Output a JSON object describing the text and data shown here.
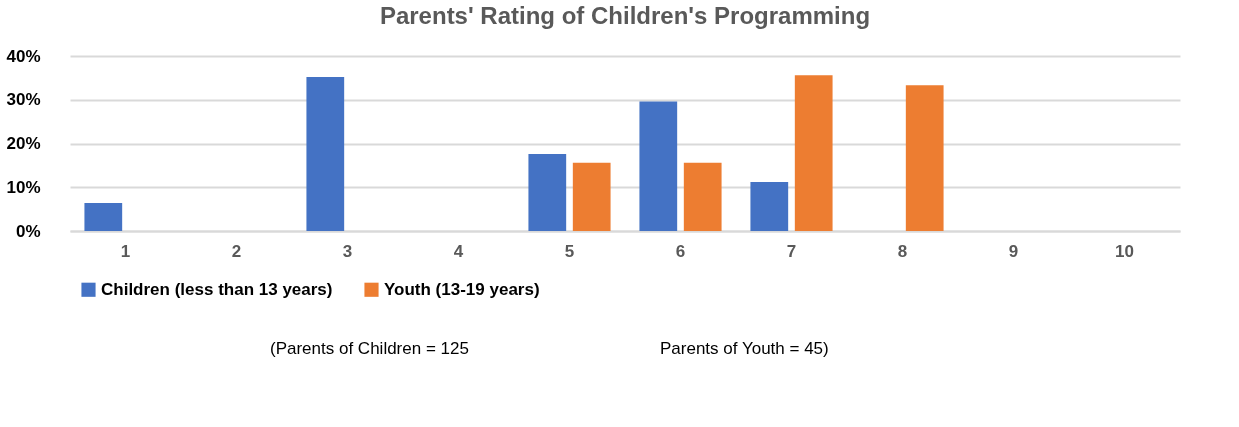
{
  "chart_data": {
    "type": "bar",
    "title": "Parents' Rating of Children's Programming",
    "categories": [
      "1",
      "2",
      "3",
      "4",
      "5",
      "6",
      "7",
      "8",
      "9",
      "10"
    ],
    "series": [
      {
        "name": "Children (less than 13 years)",
        "color": "#4472c4",
        "values": [
          6.4,
          0,
          35.2,
          0,
          17.6,
          29.6,
          11.2,
          0,
          0,
          0
        ]
      },
      {
        "name": "Youth (13-19 years)",
        "color": "#ed7d31",
        "values": [
          0,
          0,
          0,
          0,
          15.6,
          15.6,
          35.6,
          33.3,
          0,
          0
        ]
      }
    ],
    "ylim": [
      0,
      40
    ],
    "yticks": [
      {
        "value": 0,
        "label": "0%"
      },
      {
        "value": 10,
        "label": "10%"
      },
      {
        "value": 20,
        "label": "20%"
      },
      {
        "value": 30,
        "label": "30%"
      },
      {
        "value": 40,
        "label": "40%"
      }
    ],
    "grid": "y",
    "legend": "bottom",
    "annotations": [
      "(Parents of Children =   125",
      "Parents of Youth =   45)"
    ]
  }
}
